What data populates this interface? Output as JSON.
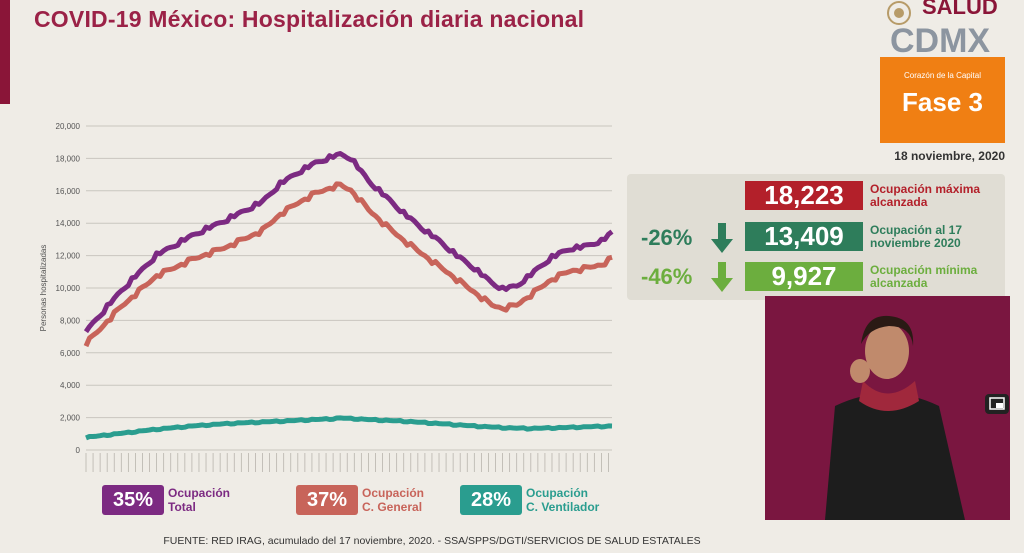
{
  "header": {
    "title": "COVID-19 México: Hospitalización diaria nacional",
    "salud_logo": "SALUD",
    "cdmx_logo": "CDMX",
    "phase_subtitle": "Corazón de la Capital",
    "phase_label": "Fase 3",
    "date": "18 noviembre, 2020"
  },
  "stats": {
    "max": {
      "value": "18,223",
      "label": "Ocupación máxima alcanzada",
      "color": "#b3202a"
    },
    "current": {
      "pct": "-26%",
      "value": "13,409",
      "label": "Ocupación al 17 noviembre 2020",
      "color": "#2e7d5b"
    },
    "min": {
      "pct": "-46%",
      "value": "9,927",
      "label": "Ocupación mínima alcanzada",
      "color": "#6cae3e"
    }
  },
  "legend": [
    {
      "pct": "35%",
      "label": "Ocupación\nTotal",
      "color": "#7c2a82"
    },
    {
      "pct": "37%",
      "label": "Ocupación\nC. General",
      "color": "#c8645a"
    },
    {
      "pct": "28%",
      "label": "Ocupación\nC. Ventilador",
      "color": "#2a9d8f"
    }
  ],
  "footer": {
    "text": "FUENTE: RED IRAG, acumulado del 17 noviembre, 2020.  -  SSA/SPPS/DGTI/SERVICIOS DE SALUD ESTATALES"
  },
  "chart_data": {
    "type": "line",
    "ylabel": "Personas hospitalizadas",
    "ylim": [
      0,
      20000
    ],
    "yticks": [
      "20,000",
      "18,000",
      "16,000",
      "14,000",
      "12,000",
      "10,000",
      "8,000",
      "6,000",
      "4,000",
      "2,000",
      "0"
    ],
    "grid": true,
    "x_count": 150,
    "series": [
      {
        "name": "Ocupación Total",
        "color": "#7c2a82",
        "keypoints": [
          [
            0,
            7300
          ],
          [
            10,
            9800
          ],
          [
            20,
            12000
          ],
          [
            30,
            13200
          ],
          [
            40,
            14200
          ],
          [
            50,
            15300
          ],
          [
            55,
            16400
          ],
          [
            60,
            17100
          ],
          [
            65,
            17700
          ],
          [
            70,
            18100
          ],
          [
            72,
            18223
          ],
          [
            75,
            18000
          ],
          [
            80,
            16600
          ],
          [
            85,
            15600
          ],
          [
            90,
            14600
          ],
          [
            95,
            13700
          ],
          [
            100,
            12900
          ],
          [
            105,
            12000
          ],
          [
            110,
            11200
          ],
          [
            115,
            10300
          ],
          [
            118,
            9927
          ],
          [
            122,
            10100
          ],
          [
            127,
            11000
          ],
          [
            132,
            11900
          ],
          [
            137,
            12400
          ],
          [
            142,
            12600
          ],
          [
            146,
            12900
          ],
          [
            149,
            13409
          ]
        ]
      },
      {
        "name": "Ocupación C. General",
        "color": "#c8645a",
        "keypoints": [
          [
            0,
            6600
          ],
          [
            10,
            8900
          ],
          [
            20,
            10800
          ],
          [
            30,
            11800
          ],
          [
            40,
            12600
          ],
          [
            50,
            13600
          ],
          [
            55,
            14600
          ],
          [
            60,
            15300
          ],
          [
            65,
            15900
          ],
          [
            70,
            16300
          ],
          [
            72,
            16400
          ],
          [
            75,
            16100
          ],
          [
            80,
            14900
          ],
          [
            85,
            13900
          ],
          [
            90,
            13000
          ],
          [
            95,
            12200
          ],
          [
            100,
            11400
          ],
          [
            105,
            10600
          ],
          [
            110,
            9800
          ],
          [
            115,
            9000
          ],
          [
            118,
            8800
          ],
          [
            122,
            9000
          ],
          [
            127,
            9800
          ],
          [
            132,
            10600
          ],
          [
            137,
            11100
          ],
          [
            142,
            11300
          ],
          [
            146,
            11500
          ],
          [
            149,
            11900
          ]
        ]
      },
      {
        "name": "Ocupación C. Ventilador",
        "color": "#2a9d8f",
        "keypoints": [
          [
            0,
            800
          ],
          [
            10,
            1050
          ],
          [
            20,
            1300
          ],
          [
            30,
            1500
          ],
          [
            40,
            1650
          ],
          [
            50,
            1750
          ],
          [
            60,
            1850
          ],
          [
            70,
            1950
          ],
          [
            72,
            2000
          ],
          [
            80,
            1900
          ],
          [
            90,
            1800
          ],
          [
            100,
            1650
          ],
          [
            110,
            1500
          ],
          [
            118,
            1400
          ],
          [
            125,
            1350
          ],
          [
            135,
            1400
          ],
          [
            142,
            1450
          ],
          [
            149,
            1500
          ]
        ]
      }
    ]
  }
}
